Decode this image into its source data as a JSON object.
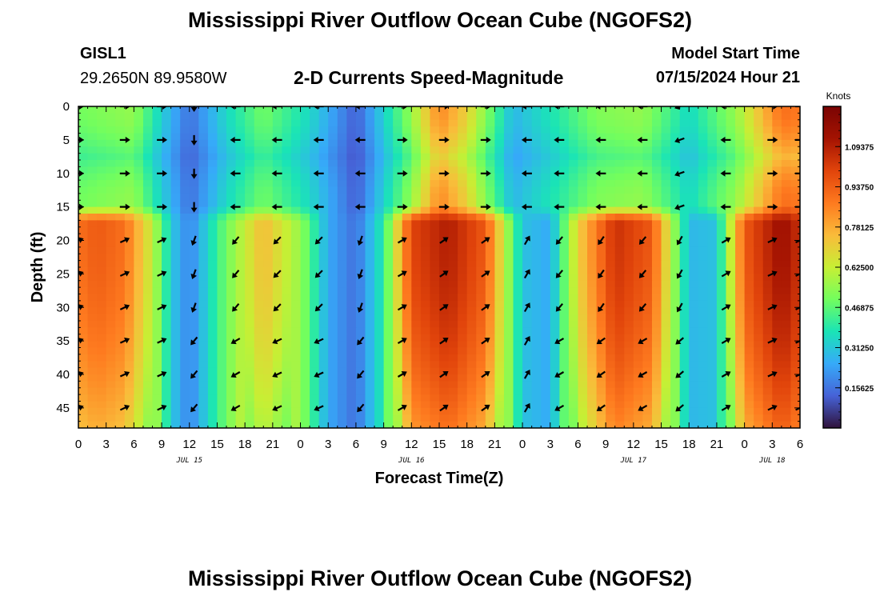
{
  "header": {
    "title": "Mississippi River Outflow Ocean Cube (NGOFS2)",
    "station": "GISL1",
    "coords": "29.2650N  89.9580W",
    "subtitle": "2-D Currents Speed-Magnitude",
    "model_start_label": "Model Start Time",
    "model_start_value": "07/15/2024 Hour 21"
  },
  "footer": {
    "title": "Mississippi River Outflow Ocean Cube (NGOFS2)"
  },
  "chart_data": {
    "type": "heatmap",
    "title": "2-D Currents Speed-Magnitude",
    "xlabel": "Forecast Time(Z)",
    "ylabel": "Depth (ft)",
    "units_label": "Knots",
    "x_tick_labels": [
      "0",
      "3",
      "6",
      "9",
      "12",
      "15",
      "18",
      "21",
      "0",
      "3",
      "6",
      "9",
      "12",
      "15",
      "18",
      "21",
      "0",
      "3",
      "6",
      "9",
      "12",
      "15",
      "18",
      "21",
      "0",
      "3",
      "6"
    ],
    "x_hours_range": [
      0,
      78
    ],
    "date_labels": [
      {
        "text": "JUL 15",
        "hour": 12
      },
      {
        "text": "JUL 16",
        "hour": 36
      },
      {
        "text": "JUL 17",
        "hour": 60
      },
      {
        "text": "JUL 18",
        "hour": 75
      }
    ],
    "y_tick_labels": [
      "0",
      "5",
      "10",
      "15",
      "20",
      "25",
      "30",
      "35",
      "40",
      "45"
    ],
    "y_range_ft": [
      0,
      48
    ],
    "colorbar": {
      "range": [
        0.0,
        1.25
      ],
      "tick_values": [
        0.15625,
        0.3125,
        0.46875,
        0.625,
        0.78125,
        0.9375,
        1.09375
      ],
      "tick_labels": [
        "0.15625",
        "0.31250",
        "0.46875",
        "0.62500",
        "0.78125",
        "0.93750",
        "1.09375"
      ],
      "colors": [
        "#30123b",
        "#4662d7",
        "#36aaf9",
        "#1ae4b6",
        "#72fe5e",
        "#c7ef34",
        "#fabb3a",
        "#fe7a1f",
        "#e1440b",
        "#a41302",
        "#7a0403"
      ]
    },
    "surface_layer": {
      "depth_range_ft": [
        0,
        15
      ],
      "hours": [
        0,
        6,
        9,
        12,
        16,
        20,
        25,
        30,
        36,
        39,
        42,
        47,
        52,
        56,
        61,
        66,
        71,
        76,
        78
      ],
      "speed_kn": [
        0.5,
        0.55,
        0.33,
        0.15,
        0.35,
        0.5,
        0.35,
        0.12,
        0.55,
        0.85,
        0.7,
        0.28,
        0.4,
        0.52,
        0.55,
        0.35,
        0.55,
        0.9,
        0.88
      ]
    },
    "bottom_layer": {
      "depth_range_ft": [
        17,
        48
      ],
      "hours": [
        0,
        2,
        5,
        8,
        10,
        12,
        16,
        20,
        24,
        27,
        30,
        33,
        36,
        40,
        44,
        48,
        51,
        54,
        58,
        62,
        66,
        69,
        72,
        76,
        78
      ],
      "speed_kn": [
        0.9,
        0.95,
        0.9,
        0.62,
        0.32,
        0.18,
        0.5,
        0.75,
        0.55,
        0.25,
        0.15,
        0.4,
        1.0,
        1.1,
        0.95,
        0.3,
        0.25,
        0.7,
        1.05,
        0.95,
        0.28,
        0.3,
        0.95,
        1.15,
        1.05
      ]
    },
    "vector_hours": [
      0,
      5,
      9,
      12.5,
      17,
      21.5,
      26,
      30.5,
      35,
      39.5,
      44,
      48.5,
      52,
      56.5,
      61,
      65,
      70,
      75,
      78
    ],
    "vector_direction_deg": [
      [
        0,
        0,
        0,
        90,
        180,
        180,
        180,
        180,
        0,
        0,
        0,
        180,
        180,
        180,
        180,
        160,
        180,
        0,
        0
      ],
      [
        -20,
        -25,
        -25,
        110,
        130,
        135,
        135,
        110,
        -30,
        -35,
        -35,
        -60,
        130,
        125,
        130,
        120,
        -30,
        -25,
        -25
      ]
    ],
    "vector_layer_split_ft": 17
  }
}
